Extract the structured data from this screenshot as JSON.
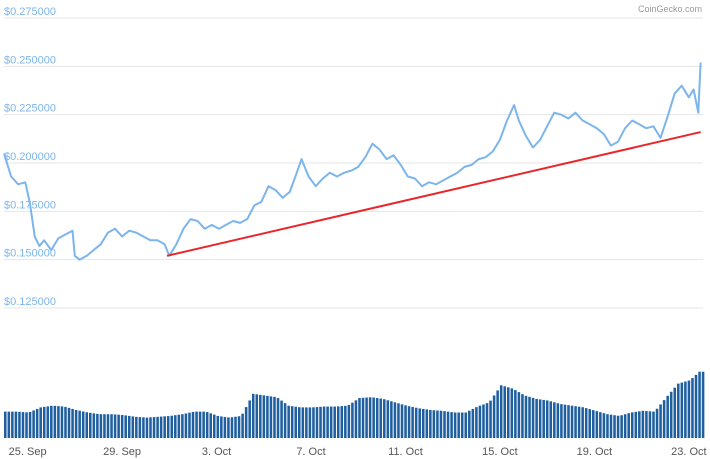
{
  "credit": "CoinGecko.com",
  "colors": {
    "price_line": "#7cb5ec",
    "trend_line": "#e8262b",
    "volume_bars": "#1f5f9f",
    "y_labels": "#7cb5ec",
    "grid": "#e6e6e6"
  },
  "chart_data": [
    {
      "type": "line",
      "x_unit": "days since 24 Sep (two-hourly readings)",
      "y_ticks": [
        "$0.275000",
        "$0.250000",
        "$0.225000",
        "$0.200000",
        "$0.175000",
        "$0.150000",
        "$0.125000"
      ],
      "y_tick_values": [
        0.275,
        0.25,
        0.225,
        0.2,
        0.175,
        0.15,
        0.125
      ],
      "ylim": [
        0.125,
        0.275
      ],
      "grid": true,
      "series": [
        {
          "color": "#7cb5ec",
          "points": [
            [
              0,
              0.205
            ],
            [
              0.3,
              0.193
            ],
            [
              0.6,
              0.189
            ],
            [
              0.9,
              0.19
            ],
            [
              1.1,
              0.179
            ],
            [
              1.3,
              0.162
            ],
            [
              1.5,
              0.157
            ],
            [
              1.7,
              0.16
            ],
            [
              2.0,
              0.155
            ],
            [
              2.3,
              0.161
            ],
            [
              2.6,
              0.163
            ],
            [
              2.9,
              0.165
            ],
            [
              3.0,
              0.152
            ],
            [
              3.2,
              0.15
            ],
            [
              3.5,
              0.152
            ],
            [
              3.8,
              0.155
            ],
            [
              4.1,
              0.158
            ],
            [
              4.4,
              0.164
            ],
            [
              4.7,
              0.166
            ],
            [
              5.0,
              0.162
            ],
            [
              5.3,
              0.165
            ],
            [
              5.6,
              0.164
            ],
            [
              5.9,
              0.162
            ],
            [
              6.2,
              0.16
            ],
            [
              6.5,
              0.16
            ],
            [
              6.8,
              0.158
            ],
            [
              7.0,
              0.152
            ],
            [
              7.3,
              0.158
            ],
            [
              7.6,
              0.166
            ],
            [
              7.9,
              0.171
            ],
            [
              8.2,
              0.17
            ],
            [
              8.5,
              0.166
            ],
            [
              8.8,
              0.168
            ],
            [
              9.1,
              0.166
            ],
            [
              9.4,
              0.168
            ],
            [
              9.7,
              0.17
            ],
            [
              10.0,
              0.169
            ],
            [
              10.3,
              0.171
            ],
            [
              10.6,
              0.178
            ],
            [
              10.9,
              0.18
            ],
            [
              11.2,
              0.188
            ],
            [
              11.5,
              0.186
            ],
            [
              11.8,
              0.182
            ],
            [
              12.1,
              0.185
            ],
            [
              12.4,
              0.195
            ],
            [
              12.6,
              0.202
            ],
            [
              12.9,
              0.193
            ],
            [
              13.2,
              0.188
            ],
            [
              13.5,
              0.192
            ],
            [
              13.8,
              0.195
            ],
            [
              14.1,
              0.193
            ],
            [
              14.4,
              0.195
            ],
            [
              14.7,
              0.196
            ],
            [
              15.0,
              0.198
            ],
            [
              15.3,
              0.203
            ],
            [
              15.6,
              0.21
            ],
            [
              15.9,
              0.207
            ],
            [
              16.2,
              0.202
            ],
            [
              16.5,
              0.204
            ],
            [
              16.8,
              0.199
            ],
            [
              17.1,
              0.193
            ],
            [
              17.4,
              0.192
            ],
            [
              17.7,
              0.188
            ],
            [
              18.0,
              0.19
            ],
            [
              18.3,
              0.189
            ],
            [
              18.6,
              0.191
            ],
            [
              18.9,
              0.193
            ],
            [
              19.2,
              0.195
            ],
            [
              19.5,
              0.198
            ],
            [
              19.8,
              0.199
            ],
            [
              20.1,
              0.202
            ],
            [
              20.4,
              0.203
            ],
            [
              20.7,
              0.206
            ],
            [
              21.0,
              0.212
            ],
            [
              21.3,
              0.222
            ],
            [
              21.6,
              0.23
            ],
            [
              21.8,
              0.222
            ],
            [
              22.1,
              0.214
            ],
            [
              22.4,
              0.208
            ],
            [
              22.7,
              0.212
            ],
            [
              23.0,
              0.219
            ],
            [
              23.3,
              0.226
            ],
            [
              23.6,
              0.225
            ],
            [
              23.9,
              0.223
            ],
            [
              24.2,
              0.226
            ],
            [
              24.5,
              0.222
            ],
            [
              24.8,
              0.22
            ],
            [
              25.1,
              0.218
            ],
            [
              25.4,
              0.215
            ],
            [
              25.7,
              0.209
            ],
            [
              26.0,
              0.211
            ],
            [
              26.3,
              0.218
            ],
            [
              26.6,
              0.222
            ],
            [
              26.9,
              0.22
            ],
            [
              27.2,
              0.218
            ],
            [
              27.5,
              0.219
            ],
            [
              27.8,
              0.213
            ],
            [
              28.1,
              0.224
            ],
            [
              28.4,
              0.236
            ],
            [
              28.7,
              0.24
            ],
            [
              29.0,
              0.234
            ],
            [
              29.2,
              0.238
            ],
            [
              29.4,
              0.226
            ],
            [
              29.5,
              0.252
            ]
          ]
        },
        {
          "color": "#e8262b",
          "points": [
            [
              6.9,
              0.152
            ],
            [
              29.5,
              0.216
            ]
          ]
        }
      ]
    },
    {
      "type": "bar",
      "x_ticks": [
        "25. Sep",
        "29. Sep",
        "3. Oct",
        "7. Oct",
        "11. Oct",
        "15. Oct",
        "19. Oct",
        "23. Oct"
      ],
      "x_tick_values": [
        1,
        5,
        9,
        13,
        17,
        21,
        25,
        29
      ],
      "xlim": [
        0,
        29.6
      ],
      "series": [
        {
          "color": "#1f5f9f",
          "points": [
            [
              0,
              0.31
            ],
            [
              0.5,
              0.31
            ],
            [
              1.0,
              0.3
            ],
            [
              1.5,
              0.36
            ],
            [
              2.0,
              0.38
            ],
            [
              2.5,
              0.37
            ],
            [
              3.0,
              0.33
            ],
            [
              3.5,
              0.3
            ],
            [
              4.0,
              0.28
            ],
            [
              4.5,
              0.28
            ],
            [
              5.0,
              0.27
            ],
            [
              5.5,
              0.25
            ],
            [
              6.0,
              0.24
            ],
            [
              6.5,
              0.25
            ],
            [
              7.0,
              0.26
            ],
            [
              7.5,
              0.28
            ],
            [
              8.0,
              0.31
            ],
            [
              8.5,
              0.31
            ],
            [
              9.0,
              0.26
            ],
            [
              9.5,
              0.24
            ],
            [
              10.0,
              0.26
            ],
            [
              10.5,
              0.52
            ],
            [
              11.0,
              0.5
            ],
            [
              11.5,
              0.48
            ],
            [
              12.0,
              0.38
            ],
            [
              12.5,
              0.36
            ],
            [
              13.0,
              0.36
            ],
            [
              13.5,
              0.37
            ],
            [
              14.0,
              0.37
            ],
            [
              14.5,
              0.38
            ],
            [
              15.0,
              0.47
            ],
            [
              15.5,
              0.48
            ],
            [
              16.0,
              0.46
            ],
            [
              16.5,
              0.42
            ],
            [
              17.0,
              0.38
            ],
            [
              17.5,
              0.35
            ],
            [
              18.0,
              0.33
            ],
            [
              18.5,
              0.32
            ],
            [
              19.0,
              0.3
            ],
            [
              19.5,
              0.3
            ],
            [
              20.0,
              0.37
            ],
            [
              20.5,
              0.42
            ],
            [
              21.0,
              0.62
            ],
            [
              21.5,
              0.58
            ],
            [
              22.0,
              0.5
            ],
            [
              22.5,
              0.46
            ],
            [
              23.0,
              0.44
            ],
            [
              23.5,
              0.4
            ],
            [
              24.0,
              0.38
            ],
            [
              24.5,
              0.36
            ],
            [
              25.0,
              0.32
            ],
            [
              25.5,
              0.28
            ],
            [
              26.0,
              0.26
            ],
            [
              26.5,
              0.3
            ],
            [
              27.0,
              0.32
            ],
            [
              27.5,
              0.31
            ],
            [
              28.0,
              0.48
            ],
            [
              28.5,
              0.64
            ],
            [
              29.0,
              0.68
            ],
            [
              29.4,
              0.78
            ]
          ]
        }
      ]
    }
  ]
}
